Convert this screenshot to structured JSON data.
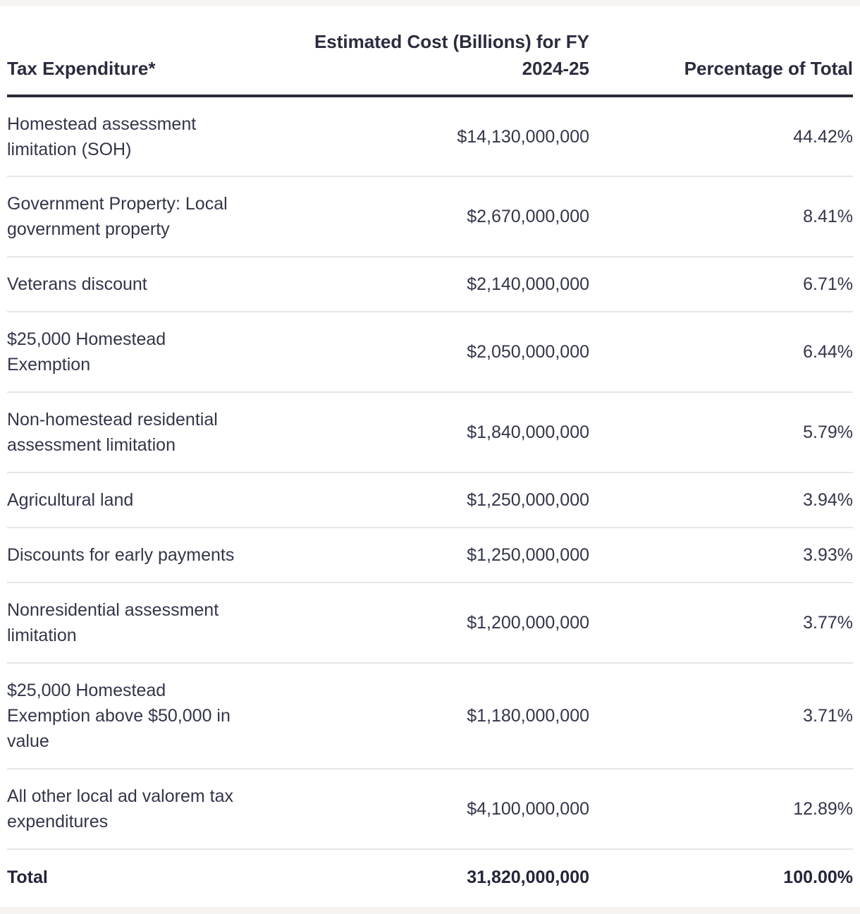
{
  "table": {
    "headers": {
      "expenditure": "Tax Expenditure*",
      "cost": "Estimated Cost (Billions) for FY 2024-25",
      "percentage": "Percentage of Total"
    },
    "rows": [
      {
        "name": "Homestead assessment limitation (SOH)",
        "cost": "$14,130,000,000",
        "percent": "44.42%"
      },
      {
        "name": "Government Property: Local government property",
        "cost": "$2,670,000,000",
        "percent": "8.41%"
      },
      {
        "name": "Veterans discount",
        "cost": "$2,140,000,000",
        "percent": "6.71%"
      },
      {
        "name": "$25,000 Homestead Exemption",
        "cost": "$2,050,000,000",
        "percent": "6.44%"
      },
      {
        "name": "Non-homestead residential assessment limitation",
        "cost": "$1,840,000,000",
        "percent": "5.79%"
      },
      {
        "name": "Agricultural land",
        "cost": "$1,250,000,000",
        "percent": "3.94%"
      },
      {
        "name": "Discounts for early payments",
        "cost": "$1,250,000,000",
        "percent": "3.93%"
      },
      {
        "name": "Nonresidential assessment limitation",
        "cost": "$1,200,000,000",
        "percent": "3.77%"
      },
      {
        "name": "$25,000 Homestead Exemption above $50,000 in value",
        "cost": "$1,180,000,000",
        "percent": "3.71%"
      },
      {
        "name": "All other local ad valorem tax expenditures",
        "cost": "$4,100,000,000",
        "percent": "12.89%"
      }
    ],
    "total": {
      "label": "Total",
      "cost": "31,820,000,000",
      "percent": "100.00%"
    }
  }
}
